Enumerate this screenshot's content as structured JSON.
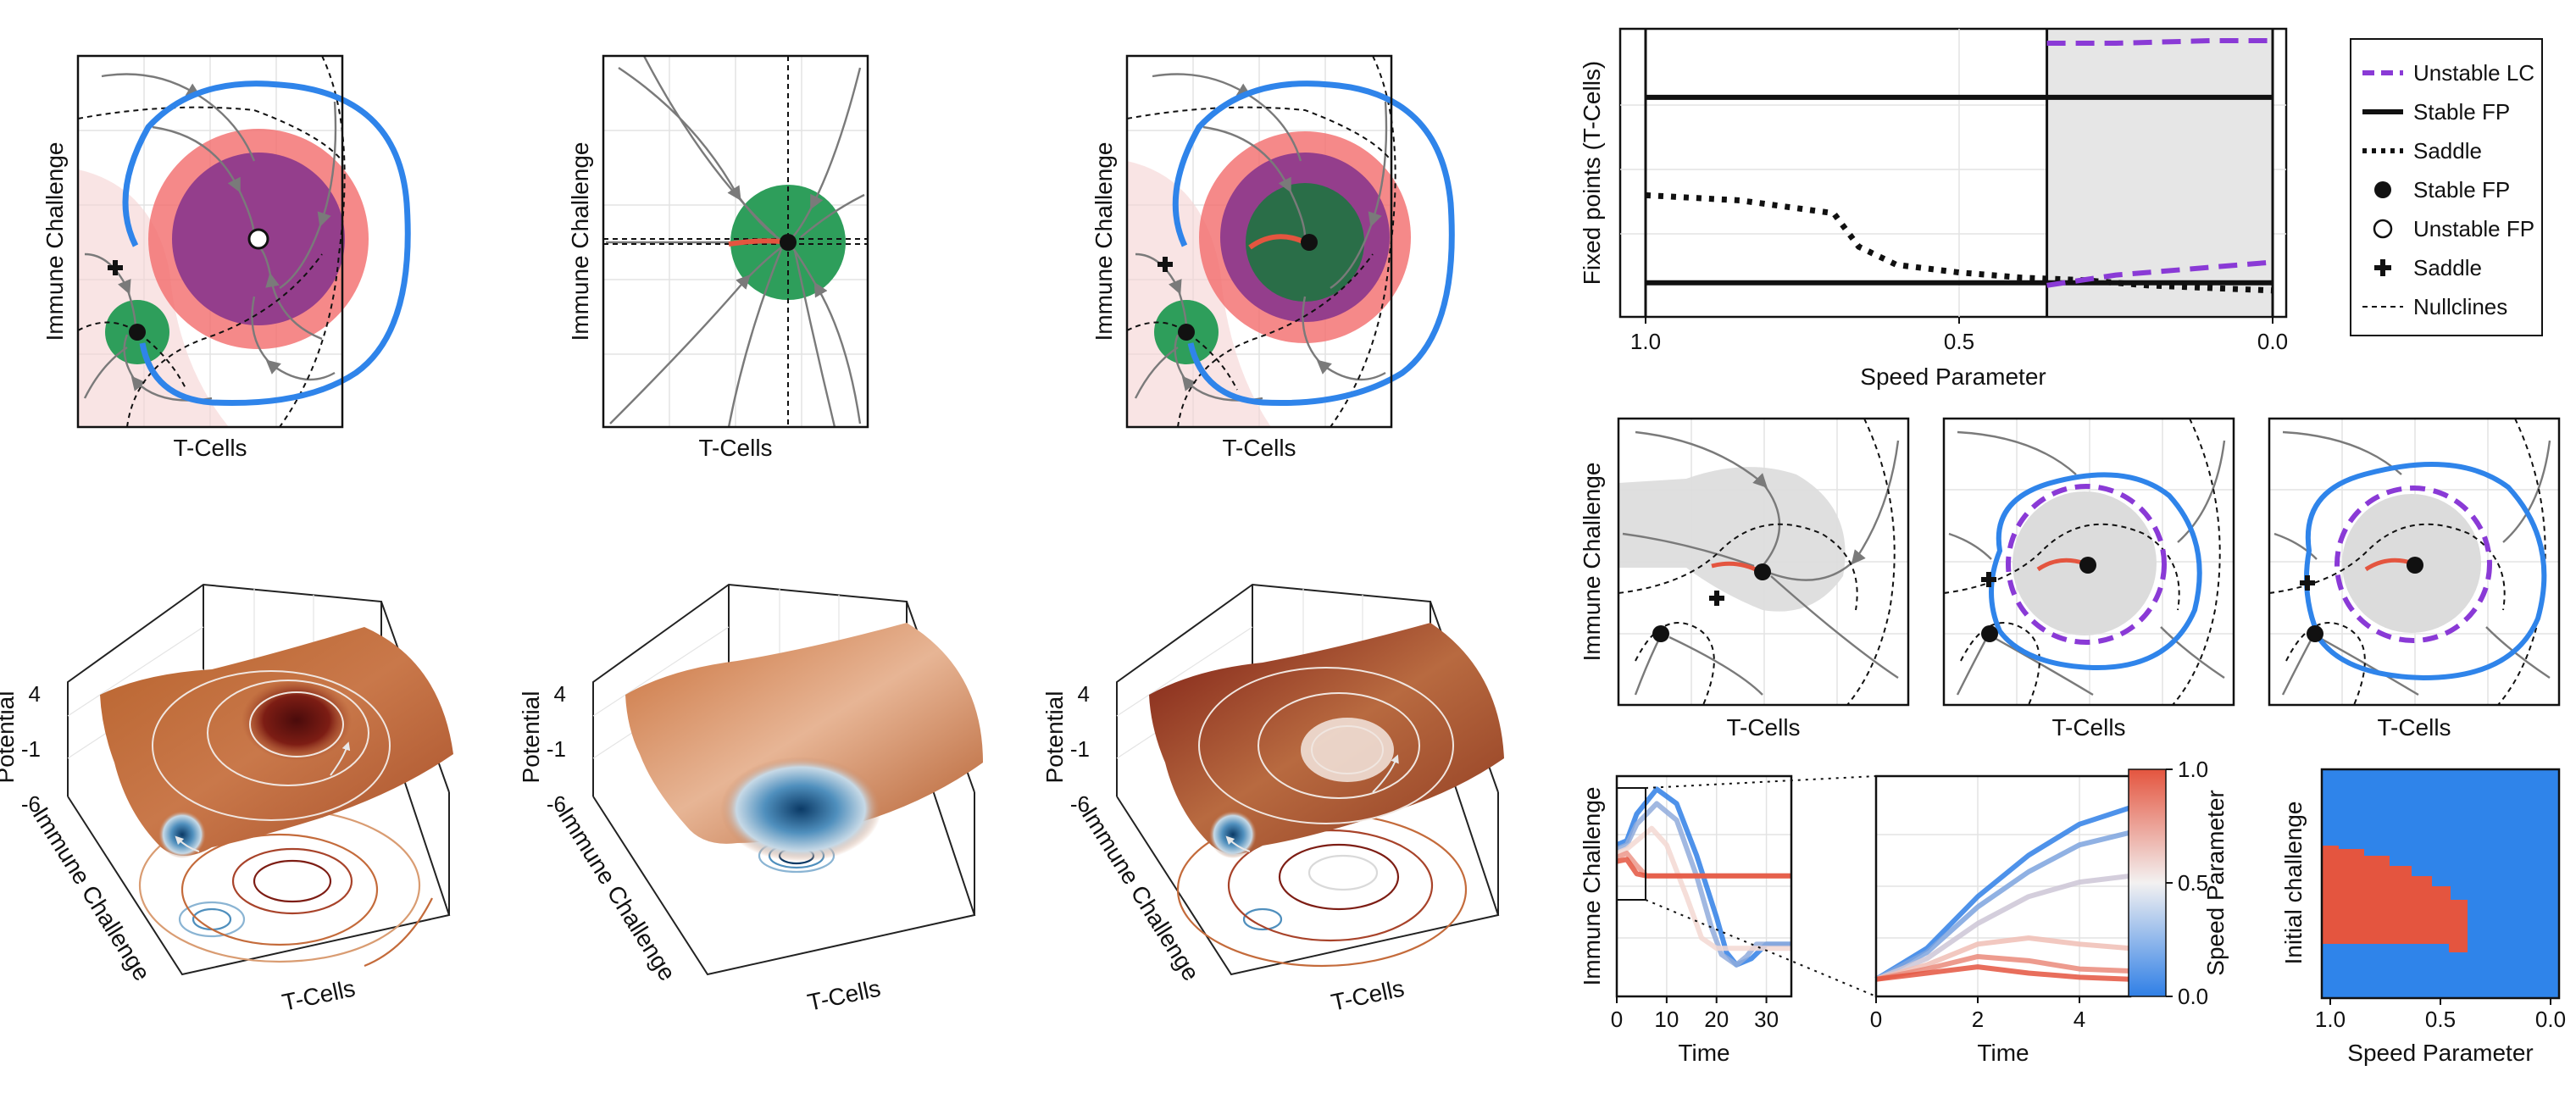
{
  "labels": {
    "x_tcells": "T-Cells",
    "y_immune": "Immune Challenge",
    "z_potential": "Potential",
    "x_speed": "Speed Parameter",
    "y_fixed": "Fixed points (T-Cells)",
    "x_time": "Time",
    "y_initial": "Initial challenge",
    "colorbar_label": "Speed Parameter"
  },
  "colors": {
    "flow": "#7a7a7a",
    "limit_cycle": "#2f84ea",
    "unstable_lc": "#8a3ad6",
    "basin_green": "#2e9e5b",
    "basin_red": "#f26b6b",
    "basin_purple": "#8e3a8c",
    "grey_region": "#e6e6e6",
    "heat_red": "#e4553f",
    "heat_blue": "#2f84ea"
  },
  "potential_ticks": [
    "4",
    "-1",
    "-6"
  ],
  "legend": [
    {
      "label": "Unstable LC",
      "style": "dashed-purple"
    },
    {
      "label": "Stable FP",
      "style": "solid-black"
    },
    {
      "label": "Saddle",
      "style": "dotted-black"
    },
    {
      "label": "Stable FP",
      "style": "filled-circle"
    },
    {
      "label": "Unstable FP",
      "style": "open-circle"
    },
    {
      "label": "Saddle",
      "style": "plus"
    },
    {
      "label": "Nullclines",
      "style": "thin-dashed"
    }
  ],
  "colorbar_ticks": [
    "1.0",
    "0.5",
    "0.0"
  ],
  "chart_data": [
    {
      "type": "line",
      "panel": "bifurcation",
      "xlabel": "Speed Parameter",
      "ylabel": "Fixed points (T-Cells)",
      "x_ticks": [
        "1.0",
        "0.5",
        "0.0"
      ],
      "xlim": [
        1.0,
        0.0
      ],
      "shaded_x_range": [
        0.36,
        0.0
      ],
      "series": [
        {
          "name": "Stable FP",
          "x": [
            1.0,
            0.0
          ],
          "y": [
            0.78,
            0.78
          ]
        },
        {
          "name": "Stable FP",
          "x": [
            1.0,
            0.0
          ],
          "y": [
            0.06,
            0.06
          ]
        },
        {
          "name": "Saddle",
          "x": [
            1.0,
            0.85,
            0.7,
            0.66,
            0.6,
            0.5,
            0.4,
            0.3,
            0.2,
            0.1,
            0.0
          ],
          "y": [
            0.4,
            0.38,
            0.33,
            0.2,
            0.13,
            0.1,
            0.08,
            0.07,
            0.05,
            0.04,
            0.03
          ]
        },
        {
          "name": "Unstable LC",
          "x": [
            0.36,
            0.25,
            0.1,
            0.0
          ],
          "y": [
            0.99,
            0.99,
            1.0,
            1.0
          ]
        },
        {
          "name": "Unstable LC",
          "x": [
            0.36,
            0.25,
            0.1,
            0.0
          ],
          "y": [
            0.05,
            0.09,
            0.12,
            0.14
          ]
        }
      ]
    },
    {
      "type": "line",
      "panel": "time-series-full",
      "xlabel": "Time",
      "ylabel": "Immune Challenge",
      "x_ticks": [
        "0",
        "10",
        "20",
        "30"
      ],
      "xlim": [
        0,
        35
      ],
      "ylim": [
        0,
        1
      ],
      "series": [
        {
          "x": [
            0,
            2,
            4,
            8,
            12,
            16,
            20,
            22,
            24,
            27,
            30,
            35
          ],
          "y": [
            0.7,
            0.72,
            0.85,
            0.97,
            0.9,
            0.65,
            0.35,
            0.18,
            0.12,
            0.15,
            0.22,
            0.22
          ]
        },
        {
          "x": [
            0,
            2,
            4,
            8,
            12,
            16,
            19,
            21,
            24,
            26,
            28,
            35
          ],
          "y": [
            0.68,
            0.7,
            0.8,
            0.9,
            0.82,
            0.55,
            0.3,
            0.17,
            0.12,
            0.16,
            0.22,
            0.22
          ]
        },
        {
          "x": [
            0,
            2,
            4,
            7,
            10,
            14,
            17,
            20,
            35
          ],
          "y": [
            0.66,
            0.68,
            0.72,
            0.78,
            0.7,
            0.45,
            0.25,
            0.2,
            0.2
          ]
        },
        {
          "x": [
            0,
            2,
            4,
            6,
            8,
            35
          ],
          "y": [
            0.64,
            0.66,
            0.6,
            0.55,
            0.55,
            0.55
          ]
        },
        {
          "x": [
            0,
            2,
            4,
            6,
            35
          ],
          "y": [
            0.62,
            0.63,
            0.56,
            0.55,
            0.55
          ]
        }
      ]
    },
    {
      "type": "line",
      "panel": "time-series-zoom",
      "xlabel": "Time",
      "x_ticks": [
        "0",
        "2",
        "4"
      ],
      "xlim": [
        0,
        5
      ],
      "ylim": [
        0,
        1
      ],
      "series": [
        {
          "x": [
            0,
            1,
            2,
            3,
            4,
            5
          ],
          "y": [
            0.05,
            0.2,
            0.45,
            0.65,
            0.8,
            0.88
          ]
        },
        {
          "x": [
            0,
            1,
            2,
            3,
            4,
            5
          ],
          "y": [
            0.05,
            0.18,
            0.4,
            0.57,
            0.7,
            0.76
          ]
        },
        {
          "x": [
            0,
            1,
            2,
            3,
            4,
            5
          ],
          "y": [
            0.05,
            0.15,
            0.32,
            0.45,
            0.52,
            0.55
          ]
        },
        {
          "x": [
            0,
            1,
            2,
            3,
            4,
            5
          ],
          "y": [
            0.05,
            0.12,
            0.22,
            0.25,
            0.22,
            0.2
          ]
        },
        {
          "x": [
            0,
            1,
            2,
            3,
            4,
            5
          ],
          "y": [
            0.05,
            0.1,
            0.16,
            0.14,
            0.1,
            0.09
          ]
        },
        {
          "x": [
            0,
            1,
            2,
            3,
            4,
            5
          ],
          "y": [
            0.05,
            0.08,
            0.11,
            0.08,
            0.06,
            0.05
          ]
        }
      ]
    },
    {
      "type": "heatmap",
      "panel": "initial-challenge",
      "xlabel": "Speed Parameter",
      "ylabel": "Initial challenge",
      "x_ticks": [
        "1.0",
        "0.5",
        "0.0"
      ],
      "xlim": [
        1.0,
        0.0
      ]
    }
  ]
}
